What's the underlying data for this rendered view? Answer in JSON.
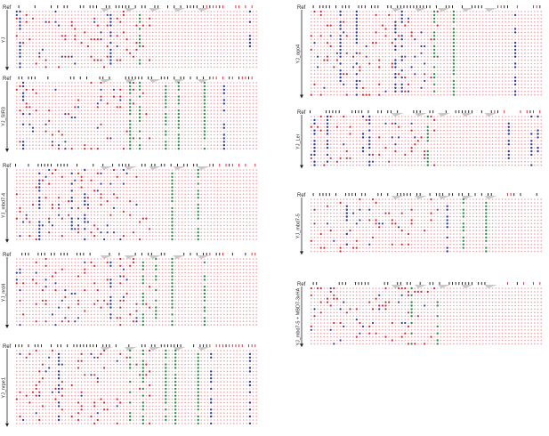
{
  "figure": {
    "ref_label": "Ref",
    "panels": [
      {
        "id": "yj",
        "column": "left",
        "label": "YJ"
      },
      {
        "id": "yj-sir3",
        "column": "left",
        "label": "YJ_SIR3"
      },
      {
        "id": "yj-mbd1-4",
        "column": "left",
        "label": "YJ_mbd7-4"
      },
      {
        "id": "yj-nrd4",
        "column": "left",
        "label": "YJ_nrd4"
      },
      {
        "id": "yj-nrpe1",
        "column": "left",
        "label": "YJ_nrpe1"
      },
      {
        "id": "yj-ago4",
        "column": "right",
        "label": "YJ_ago4"
      },
      {
        "id": "yj-ler",
        "column": "right",
        "label": "YJ_Ler"
      },
      {
        "id": "yj-mbd7-5",
        "column": "right",
        "label": "YJ_mbd7-5"
      },
      {
        "id": "yj-mbd7-rescue",
        "column": "right",
        "label": "YJ_mbd7-5 + MBD7-3xHA"
      }
    ],
    "colors": {
      "unmethylated": "#e8a0a8",
      "methylated_red": "#d02030",
      "methylated_blue": "#2a3a9a",
      "methylated_green": "#2e8a4a",
      "ref_marks": "#111111",
      "ref_marks_red": "#d02030",
      "arrow": "#222222"
    }
  }
}
